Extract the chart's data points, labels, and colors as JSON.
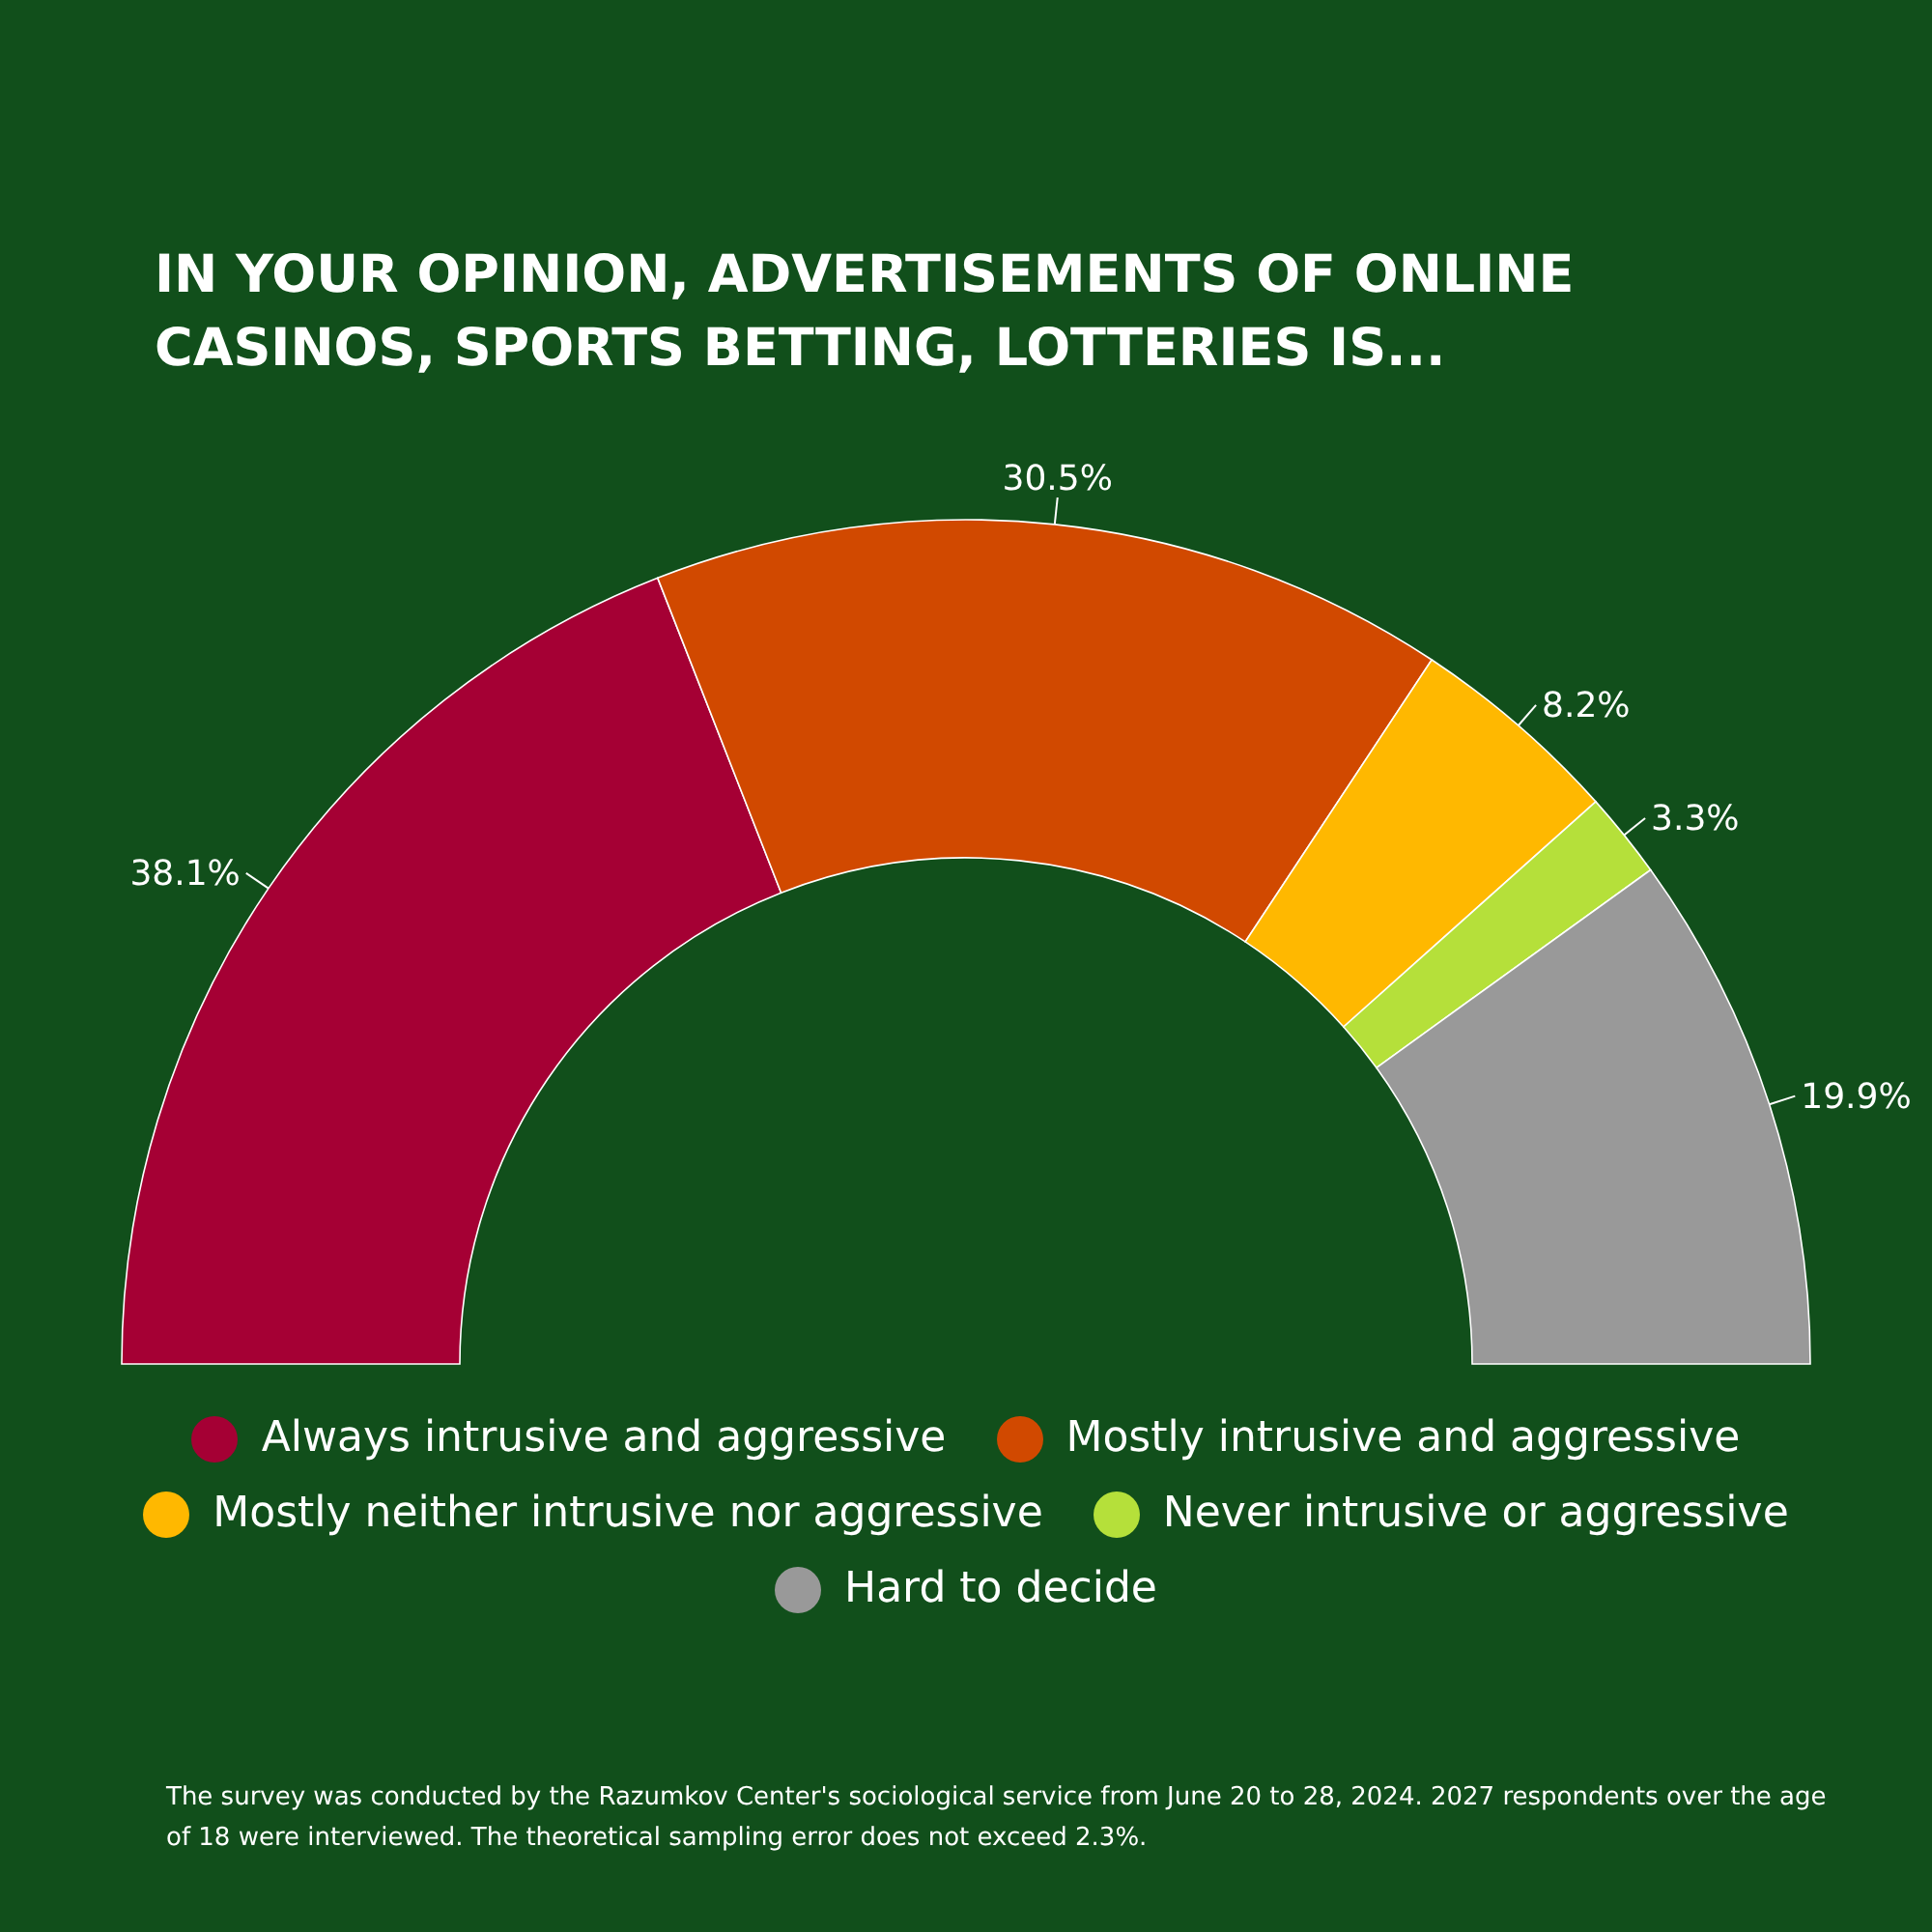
{
  "chart_data": {
    "type": "donut",
    "title": "IN YOUR OPINION, ADVERTISEMENTS OF ONLINE CASINOS, SPORTS BETTING, LOTTERIES IS...",
    "categories": [
      "Always intrusive and aggressive",
      "Mostly intrusive and aggressive",
      "Mostly neither intrusive nor aggressive",
      "Never intrusive or aggressive",
      "Hard to decide"
    ],
    "values": [
      38.1,
      30.5,
      8.2,
      3.3,
      19.9
    ],
    "colors": [
      "#a50034",
      "#d14900",
      "#ffb800",
      "#b5e03a",
      "#999999"
    ],
    "value_labels": [
      "38.1%",
      "30.5%",
      "8.2%",
      "3.3%",
      "19.9%"
    ],
    "legend": "bottom",
    "annotations": [
      "The survey was conducted by the Razumkov Center's sociological service from June 20 to 28, 2024. 2027 respondents over the age of 18 were interviewed. The theoretical sampling error does not exceed 2.3%."
    ]
  }
}
